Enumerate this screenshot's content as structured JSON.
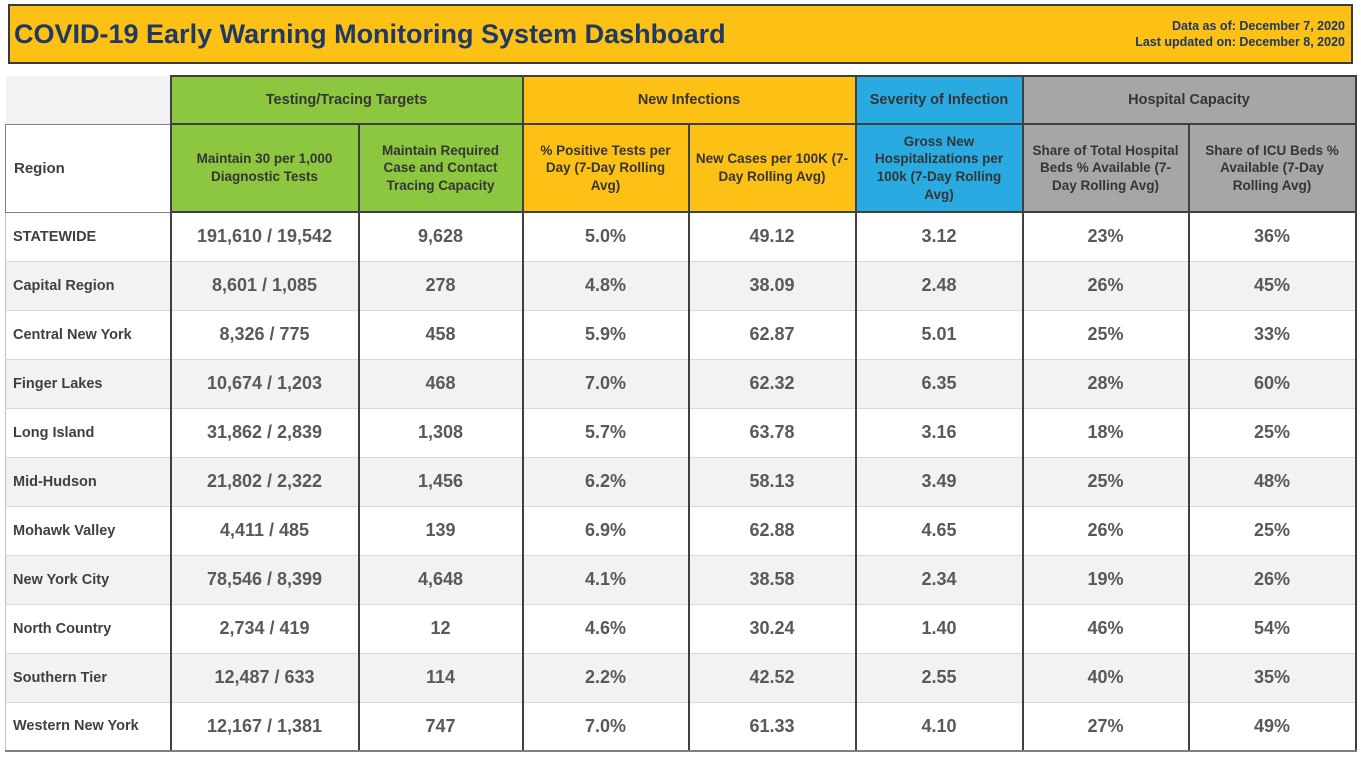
{
  "header": {
    "title": "COVID-19 Early Warning Monitoring System Dashboard",
    "data_as_of": "Data as of: December 7, 2020",
    "last_updated": "Last updated on: December 8, 2020"
  },
  "colors": {
    "title_bar": "#FDC015",
    "title_text": "#1F3864",
    "group_green": "#8DC63F",
    "group_gold": "#FDC015",
    "group_blue": "#29ABE2",
    "group_gray": "#A6A6A6",
    "row_stripe": "#F2F2F2",
    "data_text": "#595959"
  },
  "table": {
    "region_header": "Region",
    "groups": [
      {
        "label": "Testing/Tracing Targets",
        "color": "green",
        "span": 2
      },
      {
        "label": "New Infections",
        "color": "gold",
        "span": 2
      },
      {
        "label": "Severity of Infection",
        "color": "blue",
        "span": 1
      },
      {
        "label": "Hospital Capacity",
        "color": "gray",
        "span": 2
      }
    ],
    "columns": [
      {
        "label": "Maintain 30 per 1,000 Diagnostic Tests",
        "group": "green"
      },
      {
        "label": "Maintain Required Case and Contact Tracing Capacity",
        "group": "green"
      },
      {
        "label": "% Positive Tests per Day (7-Day Rolling Avg)",
        "group": "gold"
      },
      {
        "label": "New Cases per 100K (7-Day Rolling Avg)",
        "group": "gold"
      },
      {
        "label": "Gross New Hospitalizations per 100k (7-Day Rolling Avg)",
        "group": "blue"
      },
      {
        "label": "Share of Total Hospital Beds % Available (7-Day Rolling Avg)",
        "group": "gray"
      },
      {
        "label": "Share of ICU Beds % Available (7-Day Rolling Avg)",
        "group": "gray"
      }
    ],
    "rows": [
      {
        "region": "STATEWIDE",
        "values": [
          "191,610 / 19,542",
          "9,628",
          "5.0%",
          "49.12",
          "3.12",
          "23%",
          "36%"
        ]
      },
      {
        "region": "Capital Region",
        "values": [
          "8,601 / 1,085",
          "278",
          "4.8%",
          "38.09",
          "2.48",
          "26%",
          "45%"
        ]
      },
      {
        "region": "Central New York",
        "values": [
          "8,326 / 775",
          "458",
          "5.9%",
          "62.87",
          "5.01",
          "25%",
          "33%"
        ]
      },
      {
        "region": "Finger Lakes",
        "values": [
          "10,674 / 1,203",
          "468",
          "7.0%",
          "62.32",
          "6.35",
          "28%",
          "60%"
        ]
      },
      {
        "region": "Long Island",
        "values": [
          "31,862 / 2,839",
          "1,308",
          "5.7%",
          "63.78",
          "3.16",
          "18%",
          "25%"
        ]
      },
      {
        "region": "Mid-Hudson",
        "values": [
          "21,802 / 2,322",
          "1,456",
          "6.2%",
          "58.13",
          "3.49",
          "25%",
          "48%"
        ]
      },
      {
        "region": "Mohawk Valley",
        "values": [
          "4,411 / 485",
          "139",
          "6.9%",
          "62.88",
          "4.65",
          "26%",
          "25%"
        ]
      },
      {
        "region": "New York City",
        "values": [
          "78,546 / 8,399",
          "4,648",
          "4.1%",
          "38.58",
          "2.34",
          "19%",
          "26%"
        ]
      },
      {
        "region": "North Country",
        "values": [
          "2,734 / 419",
          "12",
          "4.6%",
          "30.24",
          "1.40",
          "46%",
          "54%"
        ]
      },
      {
        "region": "Southern Tier",
        "values": [
          "12,487 / 633",
          "114",
          "2.2%",
          "42.52",
          "2.55",
          "40%",
          "35%"
        ]
      },
      {
        "region": "Western New York",
        "values": [
          "12,167 / 1,381",
          "747",
          "7.0%",
          "61.33",
          "4.10",
          "27%",
          "49%"
        ]
      }
    ]
  }
}
